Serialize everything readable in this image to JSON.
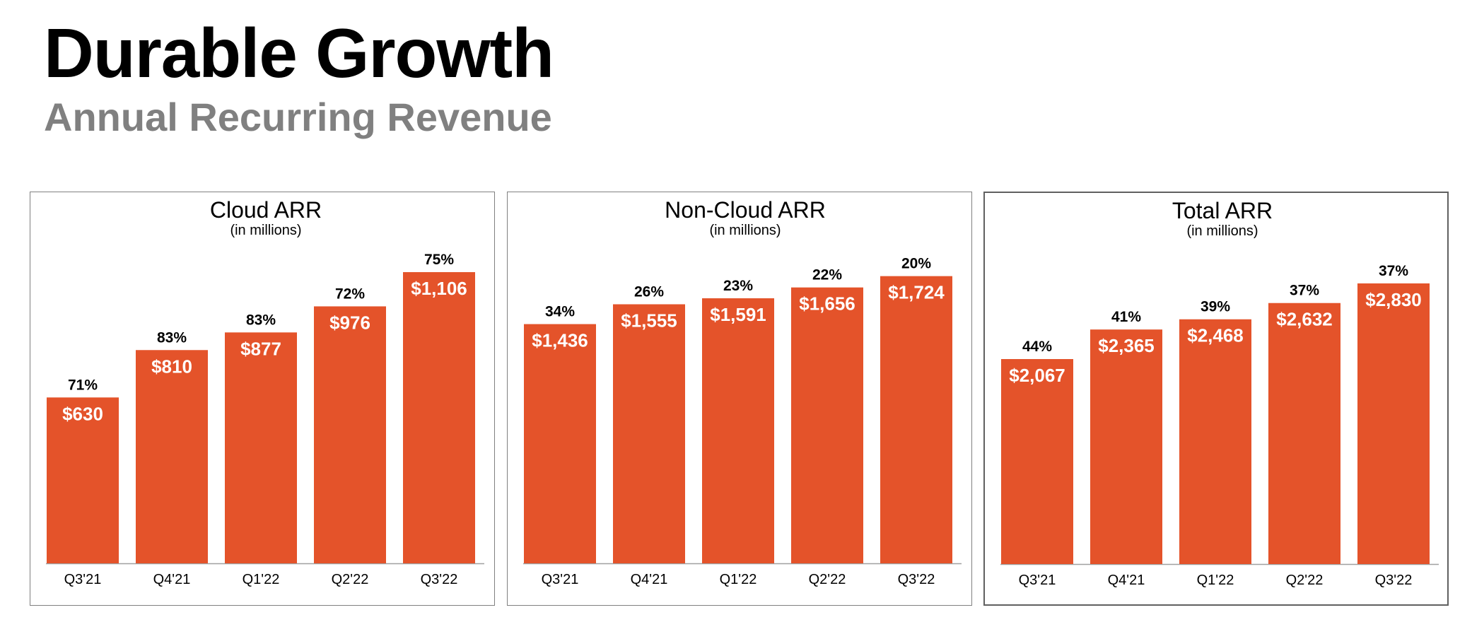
{
  "header": {
    "title": "Durable Growth",
    "subtitle": "Annual Recurring Revenue"
  },
  "colors": {
    "bar": "#E4532A",
    "axis": "#A0A0A0"
  },
  "chart_data": [
    {
      "type": "bar",
      "title": "Cloud ARR",
      "subtitle": "(in millions)",
      "categories": [
        "Q3'21",
        "Q4'21",
        "Q1'22",
        "Q2'22",
        "Q3'22"
      ],
      "values": [
        630,
        810,
        877,
        976,
        1106
      ],
      "value_labels": [
        "$630",
        "$810",
        "$877",
        "$976",
        "$1,106"
      ],
      "growth_labels": [
        "71%",
        "83%",
        "83%",
        "72%",
        "75%"
      ],
      "ylim": [
        0,
        1200
      ],
      "grid": false,
      "legend": "none"
    },
    {
      "type": "bar",
      "title": "Non-Cloud ARR",
      "subtitle": "(in millions)",
      "categories": [
        "Q3'21",
        "Q4'21",
        "Q1'22",
        "Q2'22",
        "Q3'22"
      ],
      "values": [
        1436,
        1555,
        1591,
        1656,
        1724
      ],
      "value_labels": [
        "$1,436",
        "$1,555",
        "$1,591",
        "$1,656",
        "$1,724"
      ],
      "growth_labels": [
        "34%",
        "26%",
        "23%",
        "22%",
        "20%"
      ],
      "ylim": [
        0,
        2000
      ],
      "grid": false,
      "legend": "none"
    },
    {
      "type": "bar",
      "title": "Total ARR",
      "subtitle": "(in millions)",
      "categories": [
        "Q3'21",
        "Q4'21",
        "Q1'22",
        "Q2'22",
        "Q3'22"
      ],
      "values": [
        2067,
        2365,
        2468,
        2632,
        2830
      ],
      "value_labels": [
        "$2,067",
        "$2,365",
        "$2,468",
        "$2,632",
        "$2,830"
      ],
      "growth_labels": [
        "44%",
        "41%",
        "39%",
        "37%",
        "37%"
      ],
      "ylim": [
        0,
        3200
      ],
      "grid": false,
      "legend": "none"
    }
  ]
}
